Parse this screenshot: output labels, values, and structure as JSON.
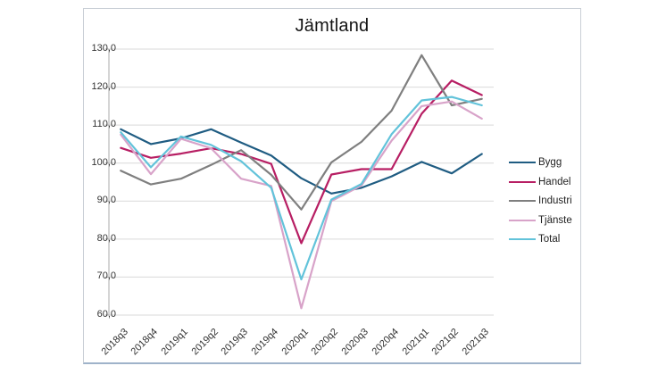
{
  "chart_data": {
    "type": "line",
    "title": "Jämtland",
    "categories": [
      "2018q3",
      "2018q4",
      "2019q1",
      "2019q2",
      "2019q3",
      "2019q4",
      "2020q1",
      "2020q2",
      "2020q3",
      "2020q4",
      "2021q1",
      "2021q2",
      "2021q3"
    ],
    "series": [
      {
        "name": "Bygg",
        "color": "#1F5C82",
        "values": [
          108.9,
          105.0,
          106.5,
          108.9,
          105.4,
          102.0,
          96.0,
          92.0,
          93.5,
          96.5,
          100.3,
          97.3,
          102.4
        ]
      },
      {
        "name": "Handel",
        "color": "#B71E63",
        "values": [
          104.0,
          101.4,
          102.5,
          103.9,
          102.4,
          99.8,
          78.9,
          97.0,
          98.4,
          98.4,
          113.0,
          121.7,
          117.9
        ]
      },
      {
        "name": "Industri",
        "color": "#7F7F7F",
        "values": [
          98.0,
          94.4,
          95.9,
          99.5,
          103.4,
          96.9,
          87.8,
          100.2,
          105.6,
          113.8,
          128.4,
          115.2,
          116.9
        ]
      },
      {
        "name": "Tjänste",
        "color": "#D8A3C9",
        "values": [
          107.5,
          97.1,
          106.4,
          103.9,
          95.9,
          94.0,
          61.8,
          90.0,
          94.1,
          105.9,
          115.0,
          116.2,
          111.7
        ]
      },
      {
        "name": "Total",
        "color": "#62C3DA",
        "values": [
          108.1,
          98.9,
          107.0,
          104.8,
          100.5,
          93.5,
          69.4,
          90.4,
          94.5,
          107.6,
          116.5,
          117.4,
          115.2
        ]
      }
    ],
    "ylim": [
      60,
      130
    ],
    "y_tick_step": 10,
    "y_tick_labels": [
      "130,0",
      "120,0",
      "110,0",
      "100,0",
      "90,0",
      "80,0",
      "70,0",
      "60,0"
    ],
    "grid": "horizontal",
    "legend_position": "right",
    "gridline_color": "#D9D9D9",
    "axis_color": "#ABABAB"
  }
}
